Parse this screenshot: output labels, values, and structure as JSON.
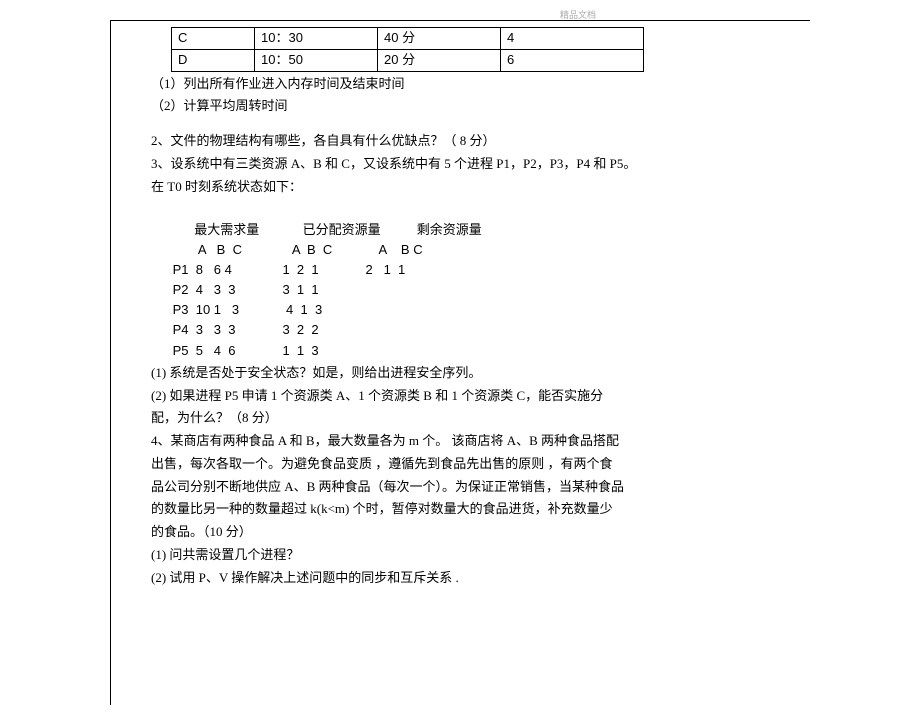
{
  "header_mark": "精品文档",
  "table_partial": {
    "columns_width": [
      "70",
      "110",
      "110",
      "130"
    ],
    "rows": [
      [
        "C",
        "10：30",
        "40 分",
        "4"
      ],
      [
        "D",
        "10：50",
        "20 分",
        "6"
      ]
    ]
  },
  "q1_sub1": "（1）列出所有作业进入内存时间及结束时间",
  "q1_sub2": "（2）计算平均周转时间",
  "q2": "2、文件的物理结构有哪些，各自具有什么优缺点？（     8 分）",
  "q3_intro1": "3、设系统中有三类资源 A、B 和 C，又设系统中有 5 个进程 P1，P2，P3，P4 和 P5。",
  "q3_intro2": "在 T0 时刻系统状态如下：",
  "resources": {
    "header_row": "       最大需求量            已分配资源量          剩余资源量",
    "abc_row": "        A   B  C              A  B  C             A    B C",
    "rows": [
      " P1  8   6 4              1  2  1             2   1  1",
      " P2  4   3  3             3  1  1",
      " P3  10 1   3             4  1  3",
      " P4  3   3  3             3  2  2",
      " P5  5   4  6             1  1  3"
    ]
  },
  "q3_1": "(1)  系统是否处于安全状态？如是，则给出进程安全序列。",
  "q3_2a": "(2)   如果进程 P5 申请 1 个资源类 A、1 个资源类 B 和 1 个资源类 C，能否实施分",
  "q3_2b": "配，为什么？（8 分）",
  "q4_l1": "4、某商店有两种食品  A 和 B，最大数量各为 m 个。 该商店将 A、B 两种食品搭配",
  "q4_l2": "出售，每次各取一个。为避免食品变质 ，遵循先到食品先出售的原则  ，有两个食",
  "q4_l3": "品公司分别不断地供应   A、B 两种食品（每次一个）。为保证正常销售，当某种食品",
  "q4_l4": "的数量比另一种的数量超过   k(k<m) 个时，暂停对数量大的食品进货，补充数量少",
  "q4_l5": "的食品。（10 分）",
  "q4_s1": "(1)   问共需设置几个进程？",
  "q4_s2": "(2)   试用 P、V 操作解决上述问题中的同步和互斥关系  ."
}
